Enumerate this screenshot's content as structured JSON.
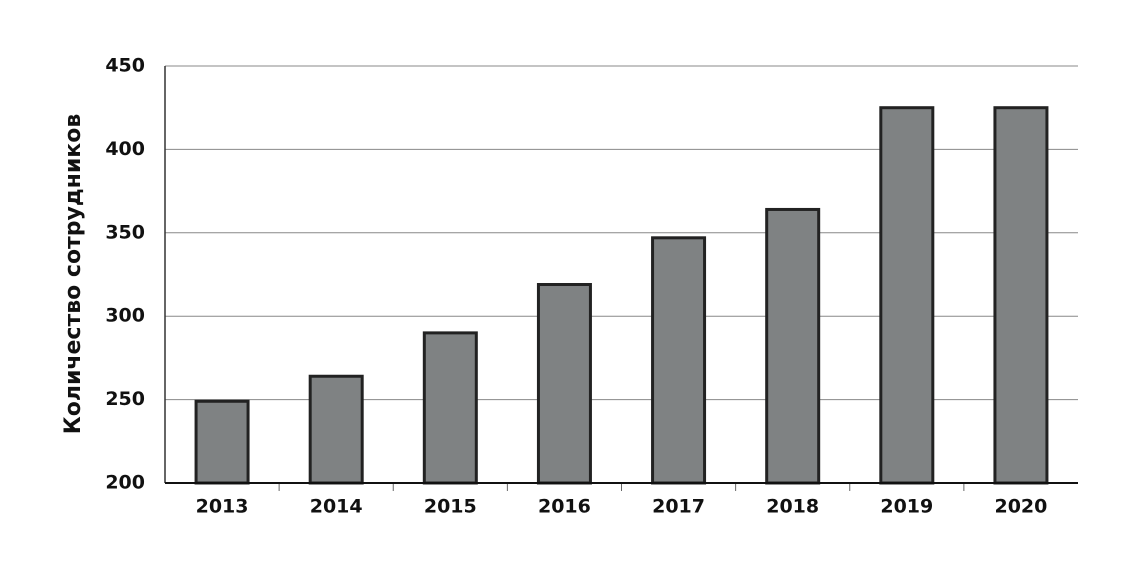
{
  "chart_data": {
    "type": "bar",
    "y_label": "Количество сотрудников",
    "categories": [
      "2013",
      "2014",
      "2015",
      "2016",
      "2017",
      "2018",
      "2019",
      "2020"
    ],
    "values": [
      249,
      264,
      290,
      319,
      347,
      364,
      425,
      425
    ],
    "color": "#7f8283",
    "ylim": [
      200,
      450
    ],
    "yticks": [
      200,
      250,
      300,
      350,
      400,
      450
    ],
    "grid": true
  }
}
